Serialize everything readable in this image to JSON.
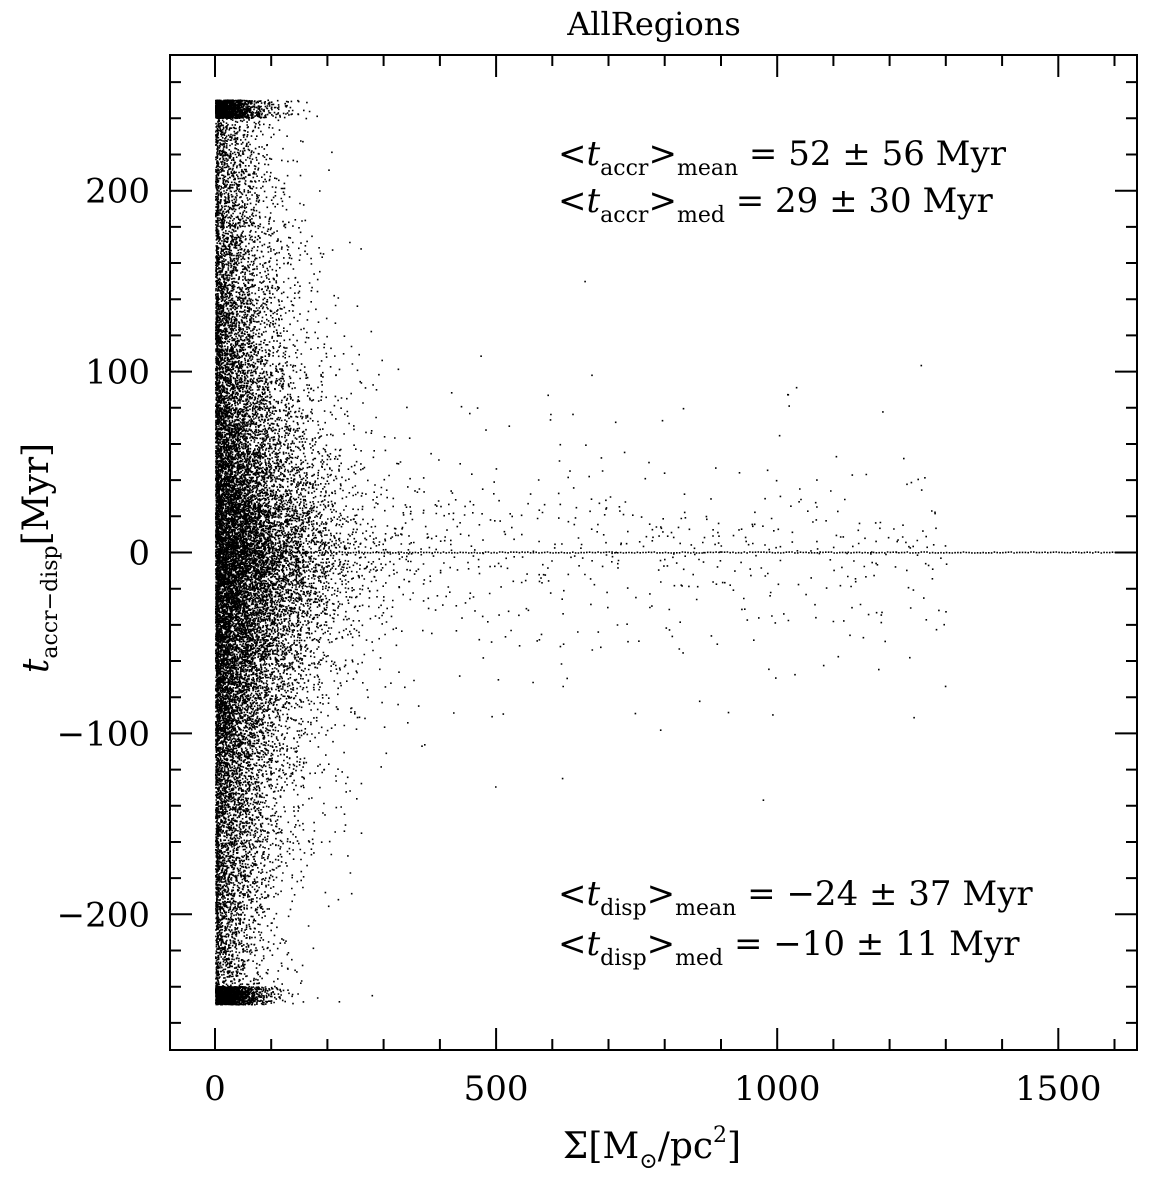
{
  "chart_data": {
    "type": "scatter",
    "title": "AllRegions",
    "xlabel": {
      "main": "Σ[M",
      "sun_sub": "⊙",
      "mid": "/pc",
      "sup": "2",
      "end": "]"
    },
    "ylabel": {
      "var": "t",
      "sub": "accr−disp",
      "unit": "[Myr]"
    },
    "xlim": [
      -80,
      1640
    ],
    "ylim": [
      -275,
      275
    ],
    "x_ticks": [
      {
        "value": 0,
        "label": "0"
      },
      {
        "value": 500,
        "label": "500"
      },
      {
        "value": 1000,
        "label": "1000"
      },
      {
        "value": 1500,
        "label": "1500"
      }
    ],
    "y_ticks": [
      {
        "value": 200,
        "label": "200"
      },
      {
        "value": 100,
        "label": "100"
      },
      {
        "value": 0,
        "label": "0"
      },
      {
        "value": -100,
        "label": "−100"
      },
      {
        "value": -200,
        "label": "−200"
      }
    ],
    "x_minor_step": 100,
    "y_minor_step": 20,
    "clip_range": [
      -250,
      250
    ],
    "annotations": [
      {
        "prefix": "<t",
        "sub": "accr",
        "close": ">",
        "stat": "mean",
        "text": "= 52 ± 56 Myr",
        "group": "accretion"
      },
      {
        "prefix": "<t",
        "sub": "accr",
        "close": ">",
        "stat": "med",
        "text": "= 29 ± 30 Myr",
        "group": "accretion"
      },
      {
        "prefix": "<t",
        "sub": "disp",
        "close": ">",
        "stat": "mean",
        "text": "= −24 ± 37 Myr",
        "group": "dispersal"
      },
      {
        "prefix": "<t",
        "sub": "disp",
        "close": ">",
        "stat": "med",
        "text": "= −10 ± 11 Myr",
        "group": "dispersal"
      }
    ],
    "series": [
      {
        "marker": "dot",
        "color": "#000000",
        "distribution": {
          "n_points": 24000,
          "accretion_mean": 52,
          "accretion_median": 29,
          "dispersal_mean": -24,
          "dispersal_median": -10,
          "sigma_max": 1600,
          "zero_line_x_range": [
            0,
            1600
          ]
        }
      }
    ]
  }
}
